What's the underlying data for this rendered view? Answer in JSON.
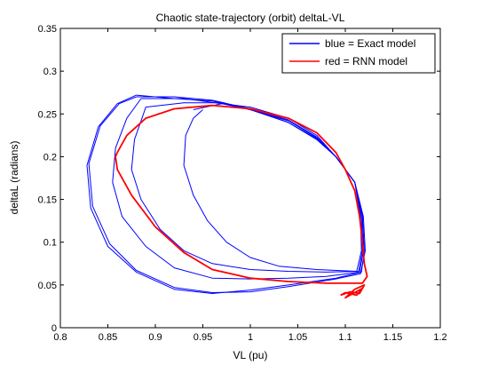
{
  "chart_data": {
    "type": "line",
    "title": "Chaotic state-trajectory (orbit) deltaL-VL",
    "xlabel": "VL (pu)",
    "ylabel": "deltaL (radians)",
    "xlim": [
      0.8,
      1.2
    ],
    "ylim": [
      0,
      0.35
    ],
    "xticks": [
      "0.8",
      "0.85",
      "0.9",
      "0.95",
      "1",
      "1.05",
      "1.1",
      "1.15",
      "1.2"
    ],
    "yticks": [
      "0",
      "0.05",
      "0.1",
      "0.15",
      "0.2",
      "0.25",
      "0.3",
      "0.35"
    ],
    "grid": false,
    "legend_position": "top-right",
    "colors": {
      "blue": "#0000ff",
      "red": "#ff0000"
    },
    "series": [
      {
        "name": "blue = Exact model",
        "color": "#0000ff",
        "loops": [
          [
            [
              0.88,
              0.272
            ],
            [
              0.92,
              0.268
            ],
            [
              0.96,
              0.265
            ],
            [
              1.0,
              0.255
            ],
            [
              1.04,
              0.24
            ],
            [
              1.07,
              0.22
            ],
            [
              1.09,
              0.2
            ],
            [
              1.11,
              0.17
            ],
            [
              1.118,
              0.13
            ],
            [
              1.12,
              0.09
            ],
            [
              1.117,
              0.065
            ],
            [
              1.09,
              0.058
            ],
            [
              1.04,
              0.05
            ],
            [
              1.0,
              0.044
            ],
            [
              0.96,
              0.04
            ],
            [
              0.92,
              0.045
            ],
            [
              0.88,
              0.065
            ],
            [
              0.85,
              0.095
            ],
            [
              0.832,
              0.14
            ],
            [
              0.828,
              0.19
            ],
            [
              0.84,
              0.235
            ],
            [
              0.86,
              0.262
            ],
            [
              0.88,
              0.272
            ]
          ],
          [
            [
              0.88,
              0.27
            ],
            [
              0.92,
              0.27
            ],
            [
              0.96,
              0.266
            ],
            [
              1.0,
              0.256
            ],
            [
              1.04,
              0.24
            ],
            [
              1.07,
              0.221
            ],
            [
              1.09,
              0.2
            ],
            [
              1.11,
              0.17
            ],
            [
              1.119,
              0.13
            ],
            [
              1.121,
              0.09
            ],
            [
              1.116,
              0.063
            ],
            [
              1.09,
              0.057
            ],
            [
              1.04,
              0.048
            ],
            [
              1.0,
              0.042
            ],
            [
              0.96,
              0.041
            ],
            [
              0.92,
              0.047
            ],
            [
              0.88,
              0.067
            ],
            [
              0.852,
              0.098
            ],
            [
              0.834,
              0.142
            ],
            [
              0.83,
              0.192
            ],
            [
              0.842,
              0.236
            ],
            [
              0.862,
              0.262
            ],
            [
              0.88,
              0.27
            ]
          ],
          [
            [
              0.885,
              0.268
            ],
            [
              0.93,
              0.268
            ],
            [
              0.97,
              0.262
            ],
            [
              1.0,
              0.255
            ],
            [
              1.04,
              0.242
            ],
            [
              1.07,
              0.222
            ],
            [
              1.09,
              0.2
            ],
            [
              1.11,
              0.17
            ],
            [
              1.118,
              0.13
            ],
            [
              1.119,
              0.09
            ],
            [
              1.115,
              0.065
            ],
            [
              1.08,
              0.06
            ],
            [
              1.04,
              0.058
            ],
            [
              1.0,
              0.057
            ],
            [
              0.96,
              0.058
            ],
            [
              0.92,
              0.07
            ],
            [
              0.89,
              0.095
            ],
            [
              0.865,
              0.13
            ],
            [
              0.855,
              0.17
            ],
            [
              0.858,
              0.21
            ],
            [
              0.87,
              0.245
            ],
            [
              0.885,
              0.268
            ]
          ],
          [
            [
              0.89,
              0.258
            ],
            [
              0.93,
              0.263
            ],
            [
              0.97,
              0.263
            ],
            [
              1.0,
              0.256
            ],
            [
              1.04,
              0.243
            ],
            [
              1.07,
              0.223
            ],
            [
              1.09,
              0.2
            ],
            [
              1.11,
              0.17
            ],
            [
              1.117,
              0.13
            ],
            [
              1.118,
              0.09
            ],
            [
              1.114,
              0.066
            ],
            [
              1.08,
              0.065
            ],
            [
              1.04,
              0.066
            ],
            [
              1.0,
              0.068
            ],
            [
              0.96,
              0.075
            ],
            [
              0.93,
              0.09
            ],
            [
              0.905,
              0.115
            ],
            [
              0.885,
              0.15
            ],
            [
              0.875,
              0.185
            ],
            [
              0.878,
              0.22
            ],
            [
              0.89,
              0.258
            ]
          ],
          [
            [
              0.94,
              0.255
            ],
            [
              0.97,
              0.262
            ],
            [
              1.0,
              0.258
            ],
            [
              1.04,
              0.245
            ],
            [
              1.07,
              0.225
            ],
            [
              1.09,
              0.2
            ],
            [
              1.11,
              0.17
            ],
            [
              1.116,
              0.13
            ],
            [
              1.117,
              0.09
            ],
            [
              1.112,
              0.066
            ],
            [
              1.07,
              0.068
            ],
            [
              1.03,
              0.072
            ],
            [
              1.0,
              0.082
            ],
            [
              0.975,
              0.1
            ],
            [
              0.955,
              0.125
            ],
            [
              0.94,
              0.155
            ],
            [
              0.93,
              0.19
            ],
            [
              0.932,
              0.225
            ],
            [
              0.94,
              0.245
            ],
            [
              0.95,
              0.255
            ]
          ]
        ]
      },
      {
        "name": "red = RNN model",
        "color": "#ff0000",
        "loops": [
          [
            [
              0.86,
              0.205
            ],
            [
              0.87,
              0.225
            ],
            [
              0.89,
              0.245
            ],
            [
              0.92,
              0.256
            ],
            [
              0.96,
              0.26
            ],
            [
              1.0,
              0.256
            ],
            [
              1.04,
              0.245
            ],
            [
              1.07,
              0.228
            ],
            [
              1.09,
              0.205
            ],
            [
              1.1,
              0.185
            ],
            [
              1.11,
              0.16
            ],
            [
              1.115,
              0.13
            ],
            [
              1.118,
              0.1
            ],
            [
              1.12,
              0.075
            ],
            [
              1.123,
              0.06
            ],
            [
              1.118,
              0.052
            ],
            [
              1.08,
              0.052
            ],
            [
              1.04,
              0.054
            ],
            [
              1.0,
              0.058
            ],
            [
              0.96,
              0.068
            ],
            [
              0.93,
              0.088
            ],
            [
              0.9,
              0.118
            ],
            [
              0.875,
              0.155
            ],
            [
              0.86,
              0.185
            ],
            [
              0.858,
              0.2
            ],
            [
              0.86,
              0.205
            ]
          ],
          [
            [
              1.095,
              0.038
            ],
            [
              1.105,
              0.042
            ],
            [
              1.115,
              0.04
            ],
            [
              1.12,
              0.05
            ],
            [
              1.11,
              0.045
            ],
            [
              1.1,
              0.035
            ],
            [
              1.108,
              0.04
            ],
            [
              1.118,
              0.046
            ],
            [
              1.112,
              0.038
            ],
            [
              1.1,
              0.041
            ],
            [
              1.095,
              0.038
            ]
          ]
        ]
      }
    ]
  }
}
